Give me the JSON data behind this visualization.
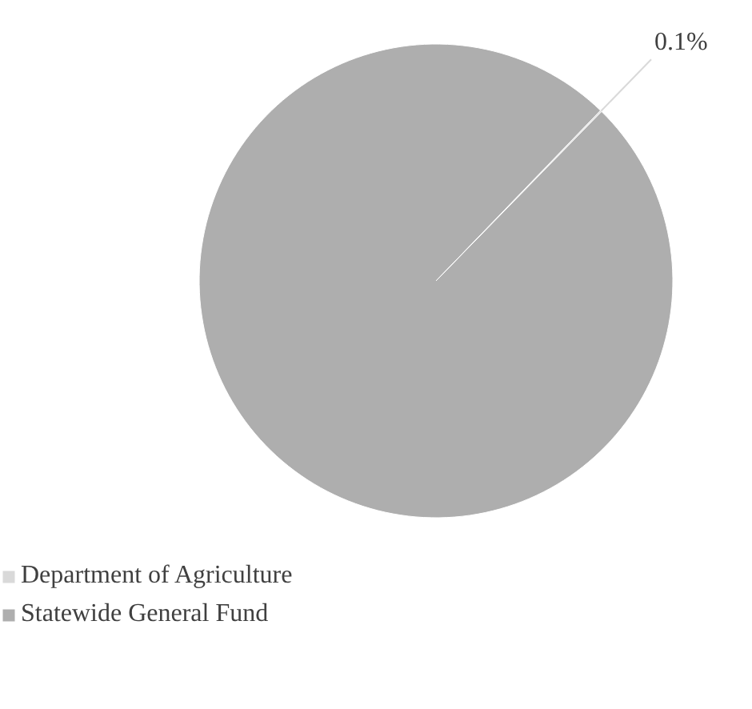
{
  "chart_data": {
    "type": "pie",
    "categories": [
      "Department of Agriculture",
      "Statewide General Fund"
    ],
    "values": [
      0.1,
      99.9
    ],
    "colors": [
      "#d9d9d9",
      "#aeaeae"
    ],
    "value_labels": [
      "0.1%",
      null
    ],
    "legend": "bottom left"
  }
}
